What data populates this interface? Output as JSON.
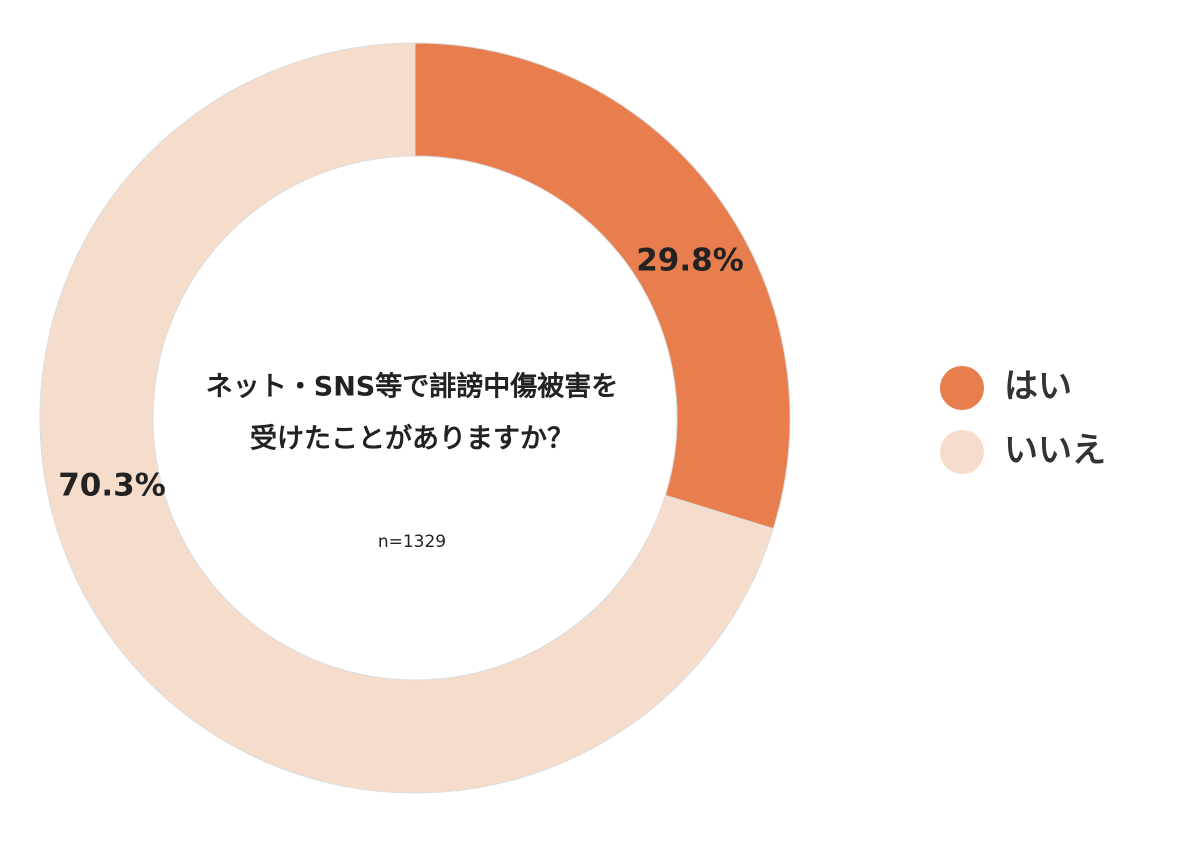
{
  "chart_data": {
    "type": "donut",
    "title": [
      "ネット・SNS等で誹謗中傷被害を",
      "受けたことがありますか？"
    ],
    "note": "n=1329",
    "categories": [
      "はい",
      "いいえ"
    ],
    "values": [
      29.8,
      70.3
    ],
    "value_labels": [
      "29.8%",
      "70.3%"
    ],
    "colors": [
      "#e87d4e",
      "#f5dccb"
    ]
  }
}
